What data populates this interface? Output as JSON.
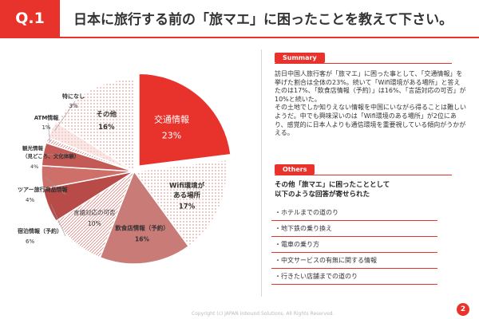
{
  "header": {
    "badge": "Q.1",
    "title": "日本に旅行する前の「旅マエ」に困ったことを教えて下さい。"
  },
  "colors": {
    "accent": "#e8322c",
    "dark_red": "#b84a47",
    "mid_red": "#cf6f6a",
    "pale": "#f7dede"
  },
  "chart_data": {
    "type": "pie",
    "unit": "%",
    "slices": [
      {
        "label": "交通情報",
        "value": 23,
        "value_label": "23%"
      },
      {
        "label": "Wifi環境がある場所",
        "value": 17,
        "value_label": "17%"
      },
      {
        "label": "飲食店情報（予約）",
        "value": 16,
        "value_label": "16%"
      },
      {
        "label": "言語対応の可否",
        "value": 10,
        "value_label": "10%"
      },
      {
        "label": "宿泊情報（予約）",
        "value": 6,
        "value_label": "6%"
      },
      {
        "label": "ツアー旅行商品情報",
        "value": 4,
        "value_label": "4%"
      },
      {
        "label": "観光情報（見どころ、文化体験）",
        "value": 4,
        "value_label": "4%"
      },
      {
        "label": "ATM情報",
        "value": 1,
        "value_label": "1%"
      },
      {
        "label": "特になし",
        "value": 3,
        "value_label": "3%"
      },
      {
        "label": "その他",
        "value": 16,
        "value_label": "16%"
      }
    ]
  },
  "summary": {
    "tag": "Summary",
    "para1": "訪日中国人旅行客が「旅マエ」に困った事として、「交通情報」を挙げた割合は全体の23%。続いて「Wifi環境がある場所」と答えたのは17%、「飲食店情報（予約）」は16%、「言語対応の可否」が10%と続いた。",
    "para2": "その土地でしか知りえない情報を中国にいながら得ることは難しいようだ。中でも興味深いのは「Wifi環境のある場所」が2位にあり、感覚的に日本人よりも通信環境を重要視している傾向がうかがえる。"
  },
  "others": {
    "tag": "Others",
    "heading1": "その他「旅マエ」に困ったこととして",
    "heading2": "以下のような回答が寄せられた",
    "items": [
      "・ホテルまでの道のり",
      "・地下鉄の乗り換え",
      "・電車の乗り方",
      "・中文サービスの有無に関する情報",
      "・行きたい店舗までの道のり"
    ]
  },
  "footer": {
    "page": "2",
    "copyright": "Copyright (c) JAPAN Inbound Solutions. All Rights Reserved."
  }
}
